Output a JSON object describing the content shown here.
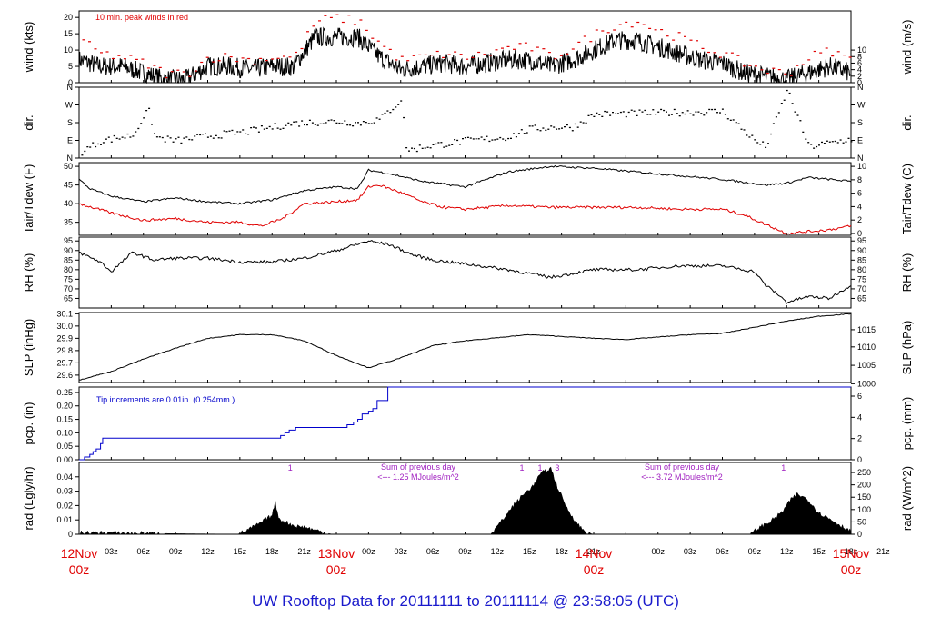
{
  "footer_title": "UW Rooftop Data for 20111111  to  20111114 @ 23:58:05  (UTC)",
  "colors": {
    "black": "#000000",
    "red": "#e00000",
    "blue": "#0000cc",
    "purple": "#a020c0",
    "footer": "#1a1acc"
  },
  "chart_data": {
    "type": "line",
    "x_axis": {
      "hour_ticks": [
        "03z",
        "06z",
        "09z",
        "12z",
        "15z",
        "18z",
        "21z",
        "00z",
        "03z",
        "06z",
        "09z",
        "12z",
        "15z",
        "18z",
        "21z",
        "00z",
        "03z",
        "06z",
        "09z",
        "12z",
        "15z",
        "18z",
        "21z"
      ],
      "day_labels": [
        {
          "date": "12Nov",
          "time": "00z"
        },
        {
          "date": "13Nov",
          "time": "00z"
        },
        {
          "date": "14Nov",
          "time": "00z"
        },
        {
          "date": "15Nov",
          "time": "00z"
        }
      ],
      "range_hours": [
        0,
        72
      ]
    },
    "panels": [
      {
        "id": "wind",
        "ylabel": "wind (kts)",
        "ylabel_right": "wind (m/s)",
        "ylim": [
          0,
          22
        ],
        "ticks": [
          "0",
          "5",
          "10",
          "15",
          "20"
        ],
        "tick_values": [
          0,
          5,
          10,
          15,
          20
        ],
        "right_ticks": [
          "0",
          "2",
          "4",
          "6",
          "8",
          "10"
        ],
        "right_tick_values": [
          0,
          2,
          4,
          6,
          8,
          10
        ],
        "annotation": "10 min. peak winds in red",
        "series": [
          {
            "color": "#000000",
            "kind": "noisy",
            "x": [
              0,
              2,
              4,
              6,
              8,
              10,
              12,
              14,
              16,
              18,
              20,
              22,
              24,
              26,
              28,
              30,
              32,
              34,
              36,
              38,
              40,
              42,
              44,
              46,
              48,
              50,
              52,
              54,
              56,
              58,
              60,
              62,
              64,
              66,
              68,
              70,
              72
            ],
            "values": [
              7,
              5,
              5,
              3,
              1,
              1,
              5,
              5,
              4,
              5,
              5,
              14,
              14,
              14,
              8,
              4,
              5,
              6,
              5,
              6,
              7,
              7,
              5,
              7,
              10,
              13,
              13,
              11,
              9,
              7,
              6,
              3,
              2,
              1,
              3,
              5,
              3
            ],
            "noise": 3
          },
          {
            "color": "#e00000",
            "kind": "dots",
            "x": [
              0,
              2,
              4,
              6,
              8,
              10,
              12,
              14,
              16,
              18,
              20,
              22,
              24,
              26,
              28,
              30,
              32,
              34,
              36,
              38,
              40,
              42,
              44,
              46,
              48,
              50,
              52,
              54,
              56,
              58,
              60,
              62,
              64,
              66,
              68,
              70,
              72
            ],
            "values": [
              13,
              9,
              8,
              6,
              3,
              3,
              8,
              8,
              7,
              8,
              8,
              19,
              20,
              19,
              12,
              7,
              8,
              9,
              8,
              9,
              11,
              11,
              8,
              11,
              15,
              18,
              19,
              16,
              14,
              11,
              9,
              6,
              4,
              3,
              8,
              10,
              7
            ],
            "noise": 1.5
          }
        ]
      },
      {
        "id": "dir",
        "ylabel": "dir.",
        "ylabel_right": "dir.",
        "ylim": [
          0,
          360
        ],
        "ticks": [
          "N",
          "E",
          "S",
          "W",
          "N"
        ],
        "tick_values": [
          0,
          90,
          180,
          270,
          360
        ],
        "right_ticks": [
          "N",
          "E",
          "S",
          "W",
          "N"
        ],
        "right_tick_values": [
          0,
          90,
          180,
          270,
          360
        ],
        "series": [
          {
            "color": "#000000",
            "kind": "scatter",
            "x": [
              0,
              2,
              4,
              5,
              6,
              6.5,
              7,
              9,
              12,
              16,
              20,
              24,
              26,
              28,
              30,
              30.5,
              32,
              36,
              40,
              42,
              44,
              46,
              48,
              52,
              56,
              60,
              63,
              64,
              66,
              68,
              70,
              72
            ],
            "values": [
              30,
              90,
              110,
              120,
              220,
              240,
              110,
              90,
              115,
              140,
              180,
              190,
              180,
              200,
              300,
              40,
              60,
              90,
              110,
              150,
              160,
              160,
              225,
              230,
              235,
              240,
              90,
              60,
              350,
              60,
              80,
              100
            ],
            "noise": 18
          }
        ]
      },
      {
        "id": "temp",
        "ylabel": "Tair/Tdew (F)",
        "ylabel_right": "Tair/Tdew (C)",
        "ylim": [
          31.5,
          51
        ],
        "ticks": [
          "35",
          "40",
          "45",
          "50"
        ],
        "tick_values": [
          35,
          40,
          45,
          50
        ],
        "right_ticks": [
          "0",
          "2",
          "4",
          "6",
          "8",
          "10"
        ],
        "right_tick_values": [
          32,
          35.6,
          39.2,
          42.8,
          46.4,
          50
        ],
        "series": [
          {
            "name": "Tair",
            "color": "#000000",
            "kind": "smooth",
            "x": [
              0,
              1,
              3,
              6,
              9,
              12,
              15,
              18,
              21,
              24,
              26,
              27,
              29,
              32,
              36,
              40,
              44,
              48,
              52,
              56,
              60,
              64,
              66,
              68,
              70,
              72
            ],
            "values": [
              46.5,
              44,
              42,
              40.5,
              41.5,
              40.5,
              40,
              41,
              43.5,
              44.5,
              44,
              49,
              48,
              46,
              44.5,
              48.5,
              50,
              49.5,
              48.5,
              47.5,
              46.5,
              45,
              45.5,
              47,
              46.5,
              46
            ],
            "noise": 0.25
          },
          {
            "name": "Tdew",
            "color": "#e00000",
            "kind": "smooth",
            "x": [
              0,
              3,
              6,
              9,
              12,
              15,
              17,
              19,
              21,
              24,
              26,
              27,
              28,
              30,
              32,
              34,
              36,
              40,
              44,
              48,
              52,
              56,
              60,
              62,
              64,
              66,
              68,
              70,
              72
            ],
            "values": [
              40,
              37.5,
              35.5,
              36,
              35,
              35,
              34,
              36,
              40,
              40.5,
              41,
              44.5,
              45,
              43,
              40.5,
              39,
              38.5,
              39.5,
              39,
              39,
              39,
              38.5,
              38.5,
              37,
              34.5,
              32,
              32.5,
              33,
              34
            ],
            "noise": 0.35
          }
        ]
      },
      {
        "id": "rh",
        "ylabel": "RH (%)",
        "ylabel_right": "RH (%)",
        "ylim": [
          60,
          97
        ],
        "ticks": [
          "65",
          "70",
          "75",
          "80",
          "85",
          "90",
          "95"
        ],
        "tick_values": [
          65,
          70,
          75,
          80,
          85,
          90,
          95
        ],
        "right_ticks": [
          "65",
          "70",
          "75",
          "80",
          "85",
          "90",
          "95"
        ],
        "right_tick_values": [
          65,
          70,
          75,
          80,
          85,
          90,
          95
        ],
        "series": [
          {
            "color": "#000000",
            "kind": "smooth",
            "x": [
              0,
              2,
              3,
              5,
              7,
              9,
              12,
              15,
              18,
              21,
              24,
              27,
              29,
              31,
              33,
              36,
              40,
              44,
              48,
              52,
              56,
              60,
              63,
              64,
              65,
              66,
              68,
              70,
              72
            ],
            "values": [
              89,
              84,
              79,
              89,
              85,
              86,
              86,
              84,
              84,
              86,
              90,
              95,
              93,
              88,
              85,
              83,
              80,
              76,
              80,
              80,
              82,
              82,
              79,
              72,
              68,
              63,
              66,
              65,
              72
            ],
            "noise": 0.8
          }
        ]
      },
      {
        "id": "slp",
        "ylabel": "SLP (inHg)",
        "ylabel_right": "SLP (hPa)",
        "ylim": [
          29.54,
          30.11
        ],
        "ticks": [
          "29.6",
          "29.7",
          "29.8",
          "29.9",
          "30.0",
          "30.1"
        ],
        "tick_values": [
          29.6,
          29.7,
          29.8,
          29.9,
          30.0,
          30.1
        ],
        "right_ticks": [
          "1000",
          "1005",
          "1010",
          "1015"
        ],
        "right_tick_values": [
          29.53,
          29.68,
          29.83,
          29.97
        ],
        "series": [
          {
            "color": "#000000",
            "kind": "smooth",
            "x": [
              0,
              3,
              6,
              9,
              12,
              15,
              18,
              21,
              24,
              27,
              30,
              33,
              36,
              42,
              48,
              51,
              54,
              57,
              60,
              63,
              66,
              69,
              72
            ],
            "values": [
              29.56,
              29.63,
              29.73,
              29.82,
              29.9,
              29.93,
              29.93,
              29.88,
              29.76,
              29.66,
              29.74,
              29.84,
              29.88,
              29.93,
              29.9,
              29.89,
              29.91,
              29.93,
              29.94,
              29.99,
              30.04,
              30.08,
              30.1
            ],
            "noise": 0.003
          }
        ]
      },
      {
        "id": "pcp",
        "ylabel": "pcp. (in)",
        "ylabel_right": "pcp. (mm)",
        "ylim": [
          0,
          0.27
        ],
        "ticks": [
          "0.00",
          "0.05",
          "0.10",
          "0.15",
          "0.20",
          "0.25"
        ],
        "tick_values": [
          0,
          0.05,
          0.1,
          0.15,
          0.2,
          0.25
        ],
        "right_ticks": [
          "0",
          "2",
          "4",
          "6"
        ],
        "right_tick_values": [
          0,
          0.0787,
          0.1575,
          0.2362
        ],
        "annotation": "Tip increments are 0.01in. (0.254mm.)",
        "series": [
          {
            "color": "#0000cc",
            "kind": "step",
            "x": [
              0,
              0.5,
              1,
              1.3,
              1.6,
              2,
              2.2,
              6,
              12,
              18,
              18.8,
              19.2,
              19.6,
              20.2,
              25,
              25.6,
              26,
              26.4,
              27,
              27.4,
              27.8,
              28.8
            ],
            "values": [
              0,
              0.01,
              0.02,
              0.03,
              0.04,
              0.06,
              0.08,
              0.08,
              0.08,
              0.08,
              0.09,
              0.1,
              0.11,
              0.12,
              0.13,
              0.14,
              0.15,
              0.17,
              0.18,
              0.19,
              0.22,
              0.27
            ],
            "end": 72
          }
        ]
      },
      {
        "id": "rad",
        "ylabel": "rad (Lgly/hr)",
        "ylabel_right": "rad (W/m^2)",
        "ylim": [
          0,
          0.05
        ],
        "ticks": [
          "0",
          "0.01",
          "0.02",
          "0.03",
          "0.04"
        ],
        "tick_values": [
          0,
          0.01,
          0.02,
          0.03,
          0.04
        ],
        "right_ticks": [
          "0",
          "50",
          "100",
          "150",
          "200",
          "250"
        ],
        "right_tick_values": [
          0,
          0.0086,
          0.0172,
          0.0258,
          0.0344,
          0.043
        ],
        "day_markers": [
          {
            "x": 19.7,
            "label": "1"
          },
          {
            "x": 41.3,
            "label": "1"
          },
          {
            "x": 43.0,
            "label": "1"
          },
          {
            "x": 44.6,
            "label": "3"
          },
          {
            "x": 65.7,
            "label": "1"
          }
        ],
        "annotations": [
          {
            "line1": "Sum of previous day",
            "line2": "<--- 1.25 MJoules/m^2"
          },
          {
            "line1": "Sum of previous day",
            "line2": "<--- 3.72 MJoules/m^2"
          }
        ],
        "series": [
          {
            "color": "#000000",
            "kind": "filled",
            "x": [
              0,
              1,
              14.8,
              16,
              17,
              17.5,
              18,
              18.3,
              18.6,
              19,
              19.5,
              20,
              21,
              22,
              23,
              23.6,
              24,
              38.4,
              39.5,
              40.5,
              41.5,
              42.5,
              43,
              43.5,
              44,
              44.5,
              45.5,
              46.5,
              47.3,
              48,
              62.6,
              63.5,
              64.5,
              65.5,
              66,
              66.5,
              67,
              68,
              69,
              72
            ],
            "values": [
              0.001,
              0.001,
              0,
              0.004,
              0.008,
              0.011,
              0.013,
              0.022,
              0.012,
              0.009,
              0.008,
              0.006,
              0.005,
              0.003,
              0.001,
              0,
              0,
              0,
              0.01,
              0.02,
              0.028,
              0.035,
              0.042,
              0.044,
              0.046,
              0.035,
              0.018,
              0.007,
              0.001,
              0,
              0,
              0.005,
              0.009,
              0.015,
              0.02,
              0.025,
              0.028,
              0.024,
              0.015,
              0.002
            ],
            "noise": 0.003
          }
        ]
      }
    ]
  }
}
